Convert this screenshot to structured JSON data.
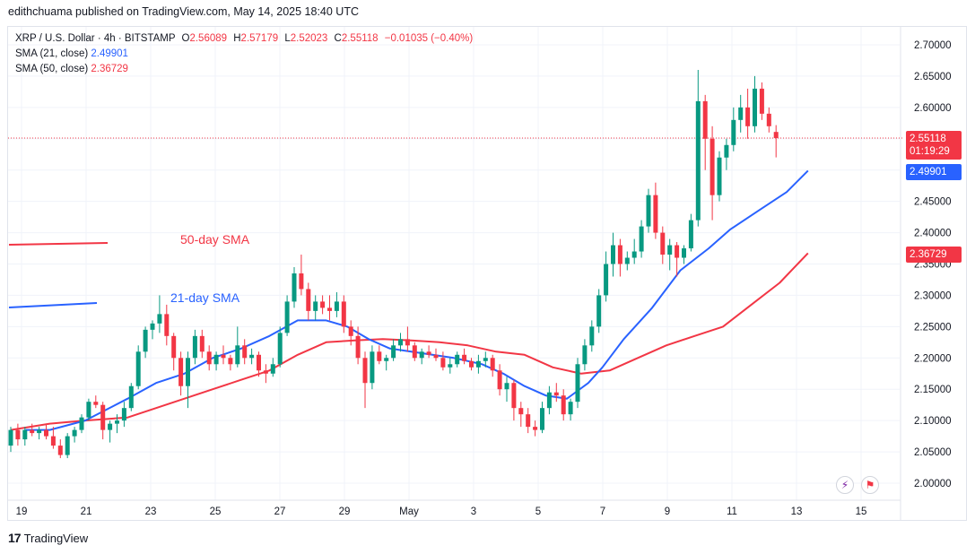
{
  "header": {
    "publisher": "edithchuama published on TradingView.com, May 14, 2025 18:40 UTC"
  },
  "legend": {
    "symbol": "XRP / U.S. Dollar · 4h · BITSTAMP",
    "ohlc": {
      "o_label": "O",
      "o": "2.56089",
      "h_label": "H",
      "h": "2.57179",
      "l_label": "L",
      "l": "2.52023",
      "c_label": "C",
      "c": "2.55118",
      "change": "−0.01035 (−0.40%)"
    },
    "sma21_label": "SMA (21, close)",
    "sma21_value": "2.49901",
    "sma50_label": "SMA (50, close)",
    "sma50_value": "2.36729"
  },
  "colors": {
    "up": "#089981",
    "down": "#f23645",
    "sma21": "#2962ff",
    "sma50": "#f23645",
    "grid": "#f0f3fa"
  },
  "price_tags": {
    "last_price": "2.55118",
    "countdown": "01:19:29",
    "sma21": "2.49901",
    "sma50": "2.36729"
  },
  "footer": {
    "brand": "TradingView"
  },
  "chart_data": {
    "type": "candlestick",
    "timeframe": "4h",
    "x_tick_labels": [
      "19",
      "21",
      "23",
      "25",
      "27",
      "29",
      "May",
      "3",
      "5",
      "7",
      "9",
      "11",
      "13",
      "15"
    ],
    "x_ticks": [
      "2025-04-19",
      "2025-04-21",
      "2025-04-23",
      "2025-04-25",
      "2025-04-27",
      "2025-04-29",
      "2025-05-01",
      "2025-05-03",
      "2025-05-05",
      "2025-05-07",
      "2025-05-09",
      "2025-05-11",
      "2025-05-13",
      "2025-05-15"
    ],
    "y_tick_labels": [
      "2.70000",
      "2.65000",
      "2.60000",
      "2.55000",
      "2.50000",
      "2.45000",
      "2.40000",
      "2.35000",
      "2.30000",
      "2.25000",
      "2.20000",
      "2.15000",
      "2.10000",
      "2.05000",
      "2.00000"
    ],
    "ylim": [
      1.985,
      2.725
    ],
    "annotations": [
      {
        "text": "50-day SMA",
        "color": "#f23645"
      },
      {
        "text": "21-day SMA",
        "color": "#2962ff"
      }
    ],
    "sma21": {
      "name": "SMA (21, close)",
      "points": [
        [
          2.084,
          2.085
        ],
        [
          5.5,
          2.085
        ],
        [
          10.5,
          2.1
        ],
        [
          16.5,
          2.135
        ],
        [
          20.5,
          2.16
        ],
        [
          24.5,
          2.175
        ],
        [
          28.5,
          2.2
        ],
        [
          32.5,
          2.215
        ],
        [
          36.5,
          2.235
        ],
        [
          40.5,
          2.26
        ],
        [
          44.5,
          2.26
        ],
        [
          47.5,
          2.25
        ],
        [
          50.5,
          2.23
        ],
        [
          53.5,
          2.215
        ],
        [
          56.5,
          2.21
        ],
        [
          59.5,
          2.205
        ],
        [
          62.5,
          2.2
        ],
        [
          66.5,
          2.19
        ],
        [
          69.5,
          2.175
        ],
        [
          72.5,
          2.155
        ],
        [
          75.5,
          2.14
        ],
        [
          78.5,
          2.135
        ],
        [
          81.5,
          2.16
        ],
        [
          83.5,
          2.185
        ],
        [
          86.5,
          2.23
        ],
        [
          90.5,
          2.28
        ],
        [
          94.5,
          2.34
        ],
        [
          98.5,
          2.375
        ],
        [
          101.5,
          2.405
        ],
        [
          105.5,
          2.435
        ],
        [
          109.5,
          2.465
        ],
        [
          112.5,
          2.49901
        ]
      ]
    },
    "sma50": {
      "name": "SMA (50, close)",
      "points": [
        [
          0.0,
          2.085
        ],
        [
          5.5,
          2.095
        ],
        [
          10.5,
          2.1
        ],
        [
          16.5,
          2.105
        ],
        [
          20.5,
          2.12
        ],
        [
          24.5,
          2.135
        ],
        [
          28.5,
          2.15
        ],
        [
          32.5,
          2.165
        ],
        [
          36.5,
          2.18
        ],
        [
          40.5,
          2.205
        ],
        [
          44.5,
          2.225
        ],
        [
          48.5,
          2.228
        ],
        [
          52.5,
          2.23
        ],
        [
          56.5,
          2.228
        ],
        [
          60.5,
          2.225
        ],
        [
          64.5,
          2.22
        ],
        [
          68.5,
          2.21
        ],
        [
          72.5,
          2.205
        ],
        [
          76.5,
          2.185
        ],
        [
          80.5,
          2.175
        ],
        [
          84.5,
          2.18
        ],
        [
          88.5,
          2.2
        ],
        [
          92.5,
          2.22
        ],
        [
          96.5,
          2.235
        ],
        [
          100.5,
          2.25
        ],
        [
          104.5,
          2.285
        ],
        [
          108.5,
          2.32
        ],
        [
          112.5,
          2.36729
        ]
      ]
    },
    "candles": [
      [
        2.06,
        2.09,
        2.05,
        2.085
      ],
      [
        2.085,
        2.095,
        2.06,
        2.07
      ],
      [
        2.07,
        2.09,
        2.06,
        2.085
      ],
      [
        2.085,
        2.095,
        2.075,
        2.08
      ],
      [
        2.08,
        2.09,
        2.07,
        2.085
      ],
      [
        2.085,
        2.095,
        2.07,
        2.075
      ],
      [
        2.075,
        2.09,
        2.055,
        2.06
      ],
      [
        2.06,
        2.07,
        2.04,
        2.045
      ],
      [
        2.045,
        2.08,
        2.04,
        2.075
      ],
      [
        2.075,
        2.09,
        2.065,
        2.085
      ],
      [
        2.085,
        2.11,
        2.08,
        2.105
      ],
      [
        2.105,
        2.135,
        2.1,
        2.13
      ],
      [
        2.13,
        2.14,
        2.12,
        2.125
      ],
      [
        2.125,
        2.13,
        2.07,
        2.085
      ],
      [
        2.085,
        2.1,
        2.065,
        2.095
      ],
      [
        2.095,
        2.11,
        2.08,
        2.1
      ],
      [
        2.1,
        2.13,
        2.09,
        2.12
      ],
      [
        2.12,
        2.16,
        2.115,
        2.155
      ],
      [
        2.155,
        2.22,
        2.15,
        2.21
      ],
      [
        2.21,
        2.25,
        2.2,
        2.245
      ],
      [
        2.245,
        2.26,
        2.23,
        2.255
      ],
      [
        2.255,
        2.3,
        2.24,
        2.27
      ],
      [
        2.27,
        2.285,
        2.22,
        2.235
      ],
      [
        2.235,
        2.24,
        2.18,
        2.2
      ],
      [
        2.2,
        2.21,
        2.14,
        2.155
      ],
      [
        2.155,
        2.21,
        2.12,
        2.2
      ],
      [
        2.2,
        2.245,
        2.19,
        2.235
      ],
      [
        2.235,
        2.245,
        2.2,
        2.21
      ],
      [
        2.21,
        2.22,
        2.18,
        2.19
      ],
      [
        2.19,
        2.21,
        2.18,
        2.205
      ],
      [
        2.205,
        2.22,
        2.19,
        2.2
      ],
      [
        2.2,
        2.205,
        2.18,
        2.19
      ],
      [
        2.19,
        2.25,
        2.185,
        2.22
      ],
      [
        2.22,
        2.23,
        2.19,
        2.2
      ],
      [
        2.2,
        2.215,
        2.19,
        2.205
      ],
      [
        2.205,
        2.21,
        2.17,
        2.18
      ],
      [
        2.18,
        2.19,
        2.16,
        2.175
      ],
      [
        2.175,
        2.2,
        2.17,
        2.19
      ],
      [
        2.19,
        2.25,
        2.185,
        2.24
      ],
      [
        2.24,
        2.3,
        2.235,
        2.29
      ],
      [
        2.29,
        2.345,
        2.28,
        2.335
      ],
      [
        2.335,
        2.365,
        2.3,
        2.31
      ],
      [
        2.31,
        2.32,
        2.26,
        2.275
      ],
      [
        2.275,
        2.3,
        2.26,
        2.29
      ],
      [
        2.29,
        2.3,
        2.27,
        2.28
      ],
      [
        2.28,
        2.3,
        2.26,
        2.275
      ],
      [
        2.275,
        2.305,
        2.265,
        2.29
      ],
      [
        2.29,
        2.3,
        2.24,
        2.25
      ],
      [
        2.25,
        2.26,
        2.22,
        2.235
      ],
      [
        2.235,
        2.25,
        2.19,
        2.2
      ],
      [
        2.2,
        2.21,
        2.12,
        2.16
      ],
      [
        2.16,
        2.22,
        2.15,
        2.21
      ],
      [
        2.21,
        2.22,
        2.19,
        2.195
      ],
      [
        2.195,
        2.205,
        2.18,
        2.2
      ],
      [
        2.2,
        2.23,
        2.195,
        2.22
      ],
      [
        2.22,
        2.24,
        2.21,
        2.23
      ],
      [
        2.23,
        2.25,
        2.21,
        2.22
      ],
      [
        2.22,
        2.225,
        2.195,
        2.2
      ],
      [
        2.2,
        2.215,
        2.19,
        2.21
      ],
      [
        2.21,
        2.22,
        2.2,
        2.205
      ],
      [
        2.205,
        2.215,
        2.195,
        2.2
      ],
      [
        2.2,
        2.21,
        2.18,
        2.185
      ],
      [
        2.185,
        2.2,
        2.175,
        2.19
      ],
      [
        2.19,
        2.21,
        2.185,
        2.205
      ],
      [
        2.205,
        2.215,
        2.19,
        2.195
      ],
      [
        2.195,
        2.2,
        2.18,
        2.185
      ],
      [
        2.185,
        2.205,
        2.175,
        2.195
      ],
      [
        2.195,
        2.21,
        2.185,
        2.2
      ],
      [
        2.2,
        2.205,
        2.17,
        2.18
      ],
      [
        2.18,
        2.19,
        2.14,
        2.15
      ],
      [
        2.15,
        2.17,
        2.13,
        2.16
      ],
      [
        2.16,
        2.165,
        2.1,
        2.12
      ],
      [
        2.12,
        2.13,
        2.09,
        2.11
      ],
      [
        2.11,
        2.12,
        2.08,
        2.09
      ],
      [
        2.09,
        2.1,
        2.075,
        2.085
      ],
      [
        2.085,
        2.13,
        2.08,
        2.12
      ],
      [
        2.12,
        2.155,
        2.11,
        2.145
      ],
      [
        2.145,
        2.16,
        2.13,
        2.14
      ],
      [
        2.14,
        2.15,
        2.1,
        2.11
      ],
      [
        2.11,
        2.135,
        2.1,
        2.13
      ],
      [
        2.13,
        2.2,
        2.12,
        2.19
      ],
      [
        2.19,
        2.23,
        2.18,
        2.22
      ],
      [
        2.22,
        2.26,
        2.21,
        2.25
      ],
      [
        2.25,
        2.31,
        2.24,
        2.3
      ],
      [
        2.3,
        2.37,
        2.29,
        2.35
      ],
      [
        2.35,
        2.4,
        2.33,
        2.38
      ],
      [
        2.38,
        2.39,
        2.33,
        2.35
      ],
      [
        2.35,
        2.37,
        2.34,
        2.36
      ],
      [
        2.36,
        2.39,
        2.35,
        2.37
      ],
      [
        2.37,
        2.42,
        2.36,
        2.41
      ],
      [
        2.41,
        2.47,
        2.4,
        2.46
      ],
      [
        2.46,
        2.48,
        2.39,
        2.4
      ],
      [
        2.4,
        2.41,
        2.35,
        2.365
      ],
      [
        2.365,
        2.39,
        2.34,
        2.38
      ],
      [
        2.38,
        2.385,
        2.33,
        2.36
      ],
      [
        2.36,
        2.38,
        2.35,
        2.375
      ],
      [
        2.375,
        2.43,
        2.37,
        2.42
      ],
      [
        2.42,
        2.66,
        2.41,
        2.61
      ],
      [
        2.61,
        2.62,
        2.5,
        2.55
      ],
      [
        2.55,
        2.57,
        2.42,
        2.46
      ],
      [
        2.46,
        2.53,
        2.45,
        2.52
      ],
      [
        2.52,
        2.55,
        2.5,
        2.54
      ],
      [
        2.54,
        2.6,
        2.53,
        2.58
      ],
      [
        2.58,
        2.62,
        2.56,
        2.6
      ],
      [
        2.6,
        2.63,
        2.55,
        2.57
      ],
      [
        2.57,
        2.65,
        2.56,
        2.63
      ],
      [
        2.63,
        2.64,
        2.58,
        2.59
      ],
      [
        2.59,
        2.6,
        2.56,
        2.57
      ],
      [
        2.56089,
        2.57179,
        2.52023,
        2.55118
      ]
    ]
  }
}
